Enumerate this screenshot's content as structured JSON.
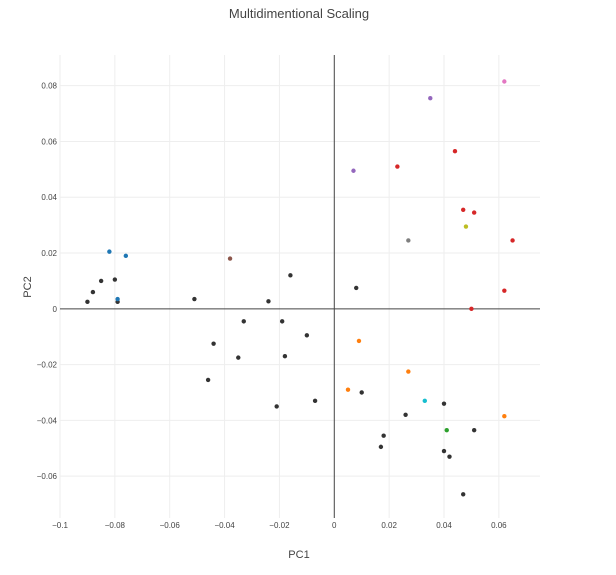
{
  "chart_data": {
    "type": "scatter",
    "title": "Multidimentional Scaling",
    "xlabel": "PC1",
    "ylabel": "PC2",
    "xlim": [
      -0.1,
      0.075
    ],
    "ylim": [
      -0.075,
      0.091
    ],
    "xticks": [
      -0.1,
      -0.08,
      -0.06,
      -0.04,
      -0.02,
      0,
      0.02,
      0.04,
      0.06
    ],
    "xtick_labels": [
      "−0.1",
      "−0.08",
      "−0.06",
      "−0.04",
      "−0.02",
      "0",
      "0.02",
      "0.04",
      "0.06"
    ],
    "yticks": [
      -0.06,
      -0.04,
      -0.02,
      0,
      0.02,
      0.04,
      0.06,
      0.08
    ],
    "ytick_labels": [
      "−0.06",
      "−0.04",
      "−0.02",
      "0",
      "0.02",
      "0.04",
      "0.06",
      "0.08"
    ],
    "grid": true,
    "zero_lines": true,
    "legend": "none",
    "series": [
      {
        "color": "#333333",
        "x": [
          -0.09,
          -0.088,
          -0.085,
          -0.08,
          -0.079,
          -0.051,
          -0.033,
          -0.024,
          -0.016,
          0.008,
          -0.044,
          -0.035,
          -0.019,
          -0.018,
          -0.01,
          -0.046,
          -0.021,
          -0.007,
          0.01,
          0.026,
          0.018,
          0.017,
          0.04,
          0.04,
          0.042,
          0.051,
          0.047
        ],
        "y": [
          0.0025,
          0.006,
          0.01,
          0.0105,
          0.0025,
          0.0035,
          -0.0045,
          0.0027,
          0.012,
          0.0075,
          -0.0125,
          -0.0175,
          -0.0045,
          -0.017,
          -0.0095,
          -0.0255,
          -0.035,
          -0.033,
          -0.03,
          -0.038,
          -0.0455,
          -0.0495,
          -0.034,
          -0.051,
          -0.053,
          -0.0435,
          -0.0665
        ]
      },
      {
        "color": "#1f77b4",
        "x": [
          -0.082,
          -0.076,
          -0.079
        ],
        "y": [
          0.0205,
          0.019,
          0.0035
        ]
      },
      {
        "color": "#d62728",
        "x": [
          0.023,
          0.044,
          0.047,
          0.051,
          0.065,
          0.062,
          0.05
        ],
        "y": [
          0.051,
          0.0565,
          0.0355,
          0.0345,
          0.0245,
          0.0065,
          0.0
        ]
      },
      {
        "color": "#9467bd",
        "x": [
          0.007,
          0.035
        ],
        "y": [
          0.0495,
          0.0755
        ]
      },
      {
        "color": "#e377c2",
        "x": [
          0.062
        ],
        "y": [
          0.0815
        ]
      },
      {
        "color": "#8c564b",
        "x": [
          -0.038
        ],
        "y": [
          0.018
        ]
      },
      {
        "color": "#7f7f7f",
        "x": [
          0.027
        ],
        "y": [
          0.0245
        ]
      },
      {
        "color": "#bcbd22",
        "x": [
          0.048
        ],
        "y": [
          0.0295
        ]
      },
      {
        "color": "#ff7f0e",
        "x": [
          0.009,
          0.005,
          0.027,
          0.062
        ],
        "y": [
          -0.0115,
          -0.029,
          -0.0225,
          -0.0385
        ]
      },
      {
        "color": "#17becf",
        "x": [
          0.033
        ],
        "y": [
          -0.033
        ]
      },
      {
        "color": "#2ca02c",
        "x": [
          0.041
        ],
        "y": [
          -0.0435
        ]
      }
    ]
  }
}
